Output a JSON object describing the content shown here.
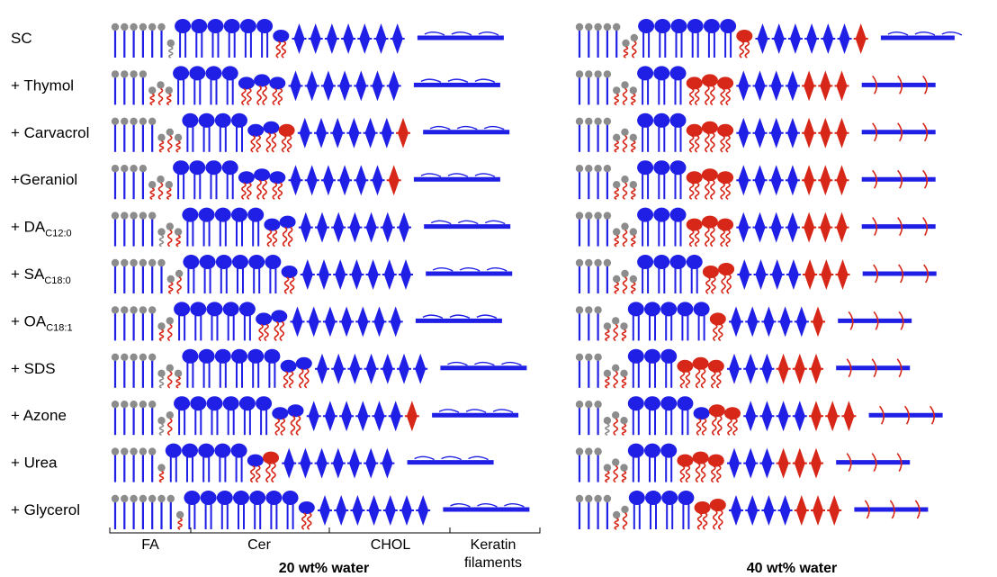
{
  "colors": {
    "fa_head": "#8c8c8c",
    "lipid": "#1f1fe6",
    "perturbed": "#d62718",
    "gray_tail": "#8c8c8c"
  },
  "rows": [
    {
      "label": "SC"
    },
    {
      "label": "+ Thymol"
    },
    {
      "label": "+ Carvacrol"
    },
    {
      "label": "+Geraniol"
    },
    {
      "label": "+ DA",
      "sub": "C12:0"
    },
    {
      "label": "+ SA",
      "sub": "C18:0"
    },
    {
      "label": "+ OA",
      "sub": "C18:1"
    },
    {
      "label": "+ SDS"
    },
    {
      "label": "+ Azone"
    },
    {
      "label": "+ Urea"
    },
    {
      "label": "+ Glycerol"
    }
  ],
  "categories": {
    "fa": "FA",
    "cer": "Cer",
    "chol": "CHOL",
    "keratin_line1": "Keratin",
    "keratin_line2": "filaments"
  },
  "conditions": {
    "left": "20 wt% water",
    "right": "40 wt% water"
  },
  "panels": {
    "left": [
      {
        "fa": [
          6,
          1,
          0
        ],
        "cer": [
          6,
          1,
          0
        ],
        "chol": [
          7,
          0
        ],
        "kw": 0
      },
      {
        "fa": [
          4,
          0,
          3
        ],
        "cer": [
          4,
          3,
          0
        ],
        "chol": [
          7,
          0
        ],
        "kw": 0
      },
      {
        "fa": [
          5,
          0,
          3
        ],
        "cer": [
          4,
          2,
          1
        ],
        "chol": [
          6,
          1
        ],
        "kw": 0
      },
      {
        "fa": [
          4,
          0,
          3
        ],
        "cer": [
          4,
          3,
          0
        ],
        "chol": [
          6,
          1
        ],
        "kw": 0
      },
      {
        "fa": [
          5,
          1,
          2
        ],
        "cer": [
          5,
          2,
          0
        ],
        "chol": [
          7,
          0
        ],
        "kw": 0
      },
      {
        "fa": [
          6,
          0,
          2
        ],
        "cer": [
          6,
          1,
          0
        ],
        "chol": [
          7,
          0
        ],
        "kw": 0
      },
      {
        "fa": [
          5,
          0,
          2
        ],
        "cer": [
          5,
          2,
          0
        ],
        "chol": [
          7,
          0
        ],
        "kw": 0
      },
      {
        "fa": [
          5,
          1,
          2
        ],
        "cer": [
          6,
          2,
          0
        ],
        "chol": [
          7,
          0
        ],
        "kw": 0
      },
      {
        "fa": [
          5,
          1,
          1
        ],
        "cer": [
          6,
          2,
          0
        ],
        "chol": [
          6,
          1
        ],
        "kw": 0
      },
      {
        "fa": [
          5,
          0,
          1
        ],
        "cer": [
          5,
          1,
          1
        ],
        "chol": [
          7,
          0
        ],
        "kw": 0
      },
      {
        "fa": [
          7,
          0,
          1
        ],
        "cer": [
          7,
          1,
          0
        ],
        "chol": [
          7,
          0
        ],
        "kw": 0
      }
    ],
    "right": [
      {
        "fa": [
          5,
          0,
          2
        ],
        "cer": [
          6,
          0,
          1
        ],
        "chol": [
          6,
          1
        ],
        "kw": 0
      },
      {
        "fa": [
          4,
          0,
          3
        ],
        "cer": [
          3,
          0,
          3
        ],
        "chol": [
          4,
          3
        ],
        "kw": 1
      },
      {
        "fa": [
          4,
          0,
          3
        ],
        "cer": [
          3,
          0,
          3
        ],
        "chol": [
          4,
          3
        ],
        "kw": 1
      },
      {
        "fa": [
          4,
          0,
          3
        ],
        "cer": [
          3,
          0,
          3
        ],
        "chol": [
          4,
          3
        ],
        "kw": 1
      },
      {
        "fa": [
          4,
          0,
          3
        ],
        "cer": [
          3,
          0,
          3
        ],
        "chol": [
          4,
          3
        ],
        "kw": 1
      },
      {
        "fa": [
          4,
          0,
          3
        ],
        "cer": [
          4,
          0,
          2
        ],
        "chol": [
          4,
          3
        ],
        "kw": 1
      },
      {
        "fa": [
          3,
          0,
          3
        ],
        "cer": [
          5,
          0,
          1
        ],
        "chol": [
          5,
          1
        ],
        "kw": 1
      },
      {
        "fa": [
          3,
          0,
          3
        ],
        "cer": [
          3,
          0,
          3
        ],
        "chol": [
          3,
          3
        ],
        "kw": 1
      },
      {
        "fa": [
          3,
          1,
          2
        ],
        "cer": [
          4,
          1,
          2
        ],
        "chol": [
          4,
          3
        ],
        "kw": 1
      },
      {
        "fa": [
          3,
          0,
          3
        ],
        "cer": [
          3,
          0,
          3
        ],
        "chol": [
          3,
          3
        ],
        "kw": 1
      },
      {
        "fa": [
          4,
          0,
          2
        ],
        "cer": [
          4,
          0,
          2
        ],
        "chol": [
          4,
          3
        ],
        "kw": 1
      }
    ]
  }
}
